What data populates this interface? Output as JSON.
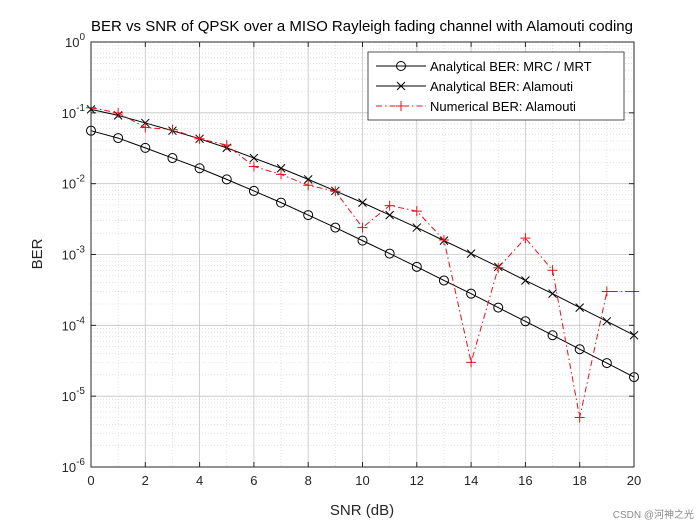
{
  "chart_data": {
    "type": "line",
    "title": "BER vs SNR of QPSK over a MISO Rayleigh fading channel with Alamouti coding",
    "xlabel": "SNR (dB)",
    "ylabel": "BER",
    "xlim": [
      0,
      20
    ],
    "ylim": [
      1e-06,
      1
    ],
    "yscale": "log",
    "grid": true,
    "minor_grid": true,
    "legend_location": "top-right",
    "x_ticks": [
      "0",
      "2",
      "4",
      "6",
      "8",
      "10",
      "12",
      "14",
      "16",
      "18",
      "20"
    ],
    "y_tick_exponents": [
      "0",
      "-1",
      "-2",
      "-3",
      "-4",
      "-5",
      "-6"
    ],
    "x": [
      0,
      1,
      2,
      3,
      4,
      5,
      6,
      7,
      8,
      9,
      10,
      11,
      12,
      13,
      14,
      15,
      16,
      17,
      18,
      19,
      20
    ],
    "series": [
      {
        "name": "Analytical BER: MRC / MRT",
        "color": "#000000",
        "line": "solid",
        "marker": "circle",
        "values": [
          0.056,
          0.044,
          0.032,
          0.023,
          0.0165,
          0.0115,
          0.0079,
          0.0054,
          0.0036,
          0.0024,
          0.00157,
          0.00103,
          0.00067,
          0.00043,
          0.00028,
          0.000178,
          0.000114,
          7.25e-05,
          4.6e-05,
          2.93e-05,
          1.86e-05
        ]
      },
      {
        "name": "Analytical BER: Alamouti",
        "color": "#000000",
        "line": "solid",
        "marker": "x",
        "values": [
          0.112,
          0.092,
          0.072,
          0.056,
          0.043,
          0.032,
          0.023,
          0.0165,
          0.0115,
          0.0079,
          0.0054,
          0.0036,
          0.0024,
          0.00157,
          0.00103,
          0.00067,
          0.00043,
          0.00028,
          0.000178,
          0.000114,
          7.25e-05
        ]
      },
      {
        "name": "Numerical BER: Alamouti",
        "color": "#e8111b",
        "line": "dashdot",
        "marker": "plus",
        "values": [
          0.118,
          0.1,
          0.062,
          0.058,
          0.043,
          0.035,
          0.0175,
          0.0135,
          0.0095,
          0.0078,
          0.0024,
          0.0049,
          0.0041,
          0.0016,
          3e-05,
          0.00065,
          0.0017,
          0.0006,
          5e-06,
          0.0003,
          0.0003
        ]
      }
    ]
  },
  "watermark": "CSDN @河神之光"
}
